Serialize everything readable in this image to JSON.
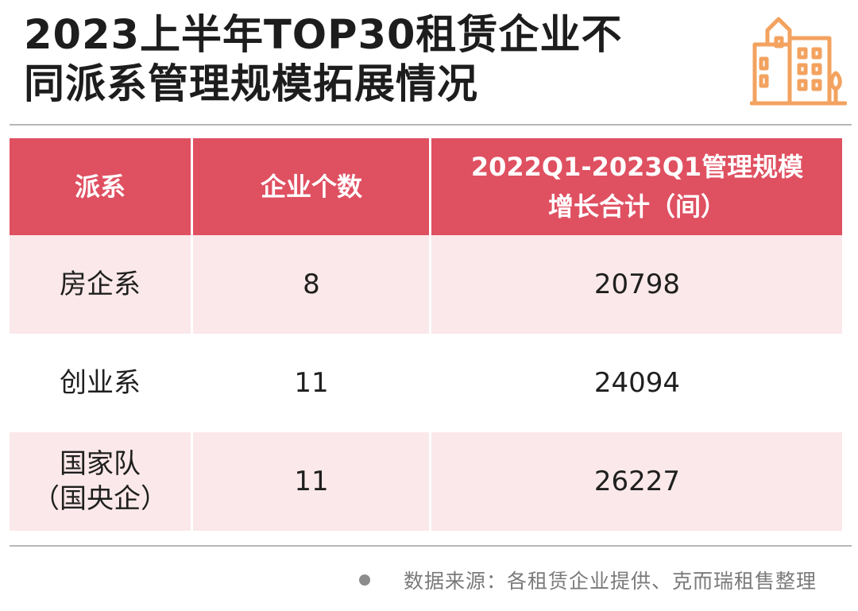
{
  "title": {
    "line1": "2023上半年TOP30租赁企业不",
    "line2": "同派系管理规模拓展情况"
  },
  "icon": "building-icon",
  "colors": {
    "header_bg": "#df5061",
    "row_alt_bg": "#fbe8ea",
    "icon_orange": "#f3a25f"
  },
  "table": {
    "headers": {
      "col1": "派系",
      "col2": "企业个数",
      "col3_line1": "2022Q1-2023Q1管理规模",
      "col3_line2": "增长合计（间）"
    },
    "rows": [
      {
        "faction": "房企系",
        "faction_line2": "",
        "count": "8",
        "growth": "20798"
      },
      {
        "faction": "创业系",
        "faction_line2": "",
        "count": "11",
        "growth": "24094"
      },
      {
        "faction": "国家队",
        "faction_line2": "（国央企）",
        "count": "11",
        "growth": "26227"
      }
    ]
  },
  "source": "数据来源：各租赁企业提供、克而瑞租售整理"
}
